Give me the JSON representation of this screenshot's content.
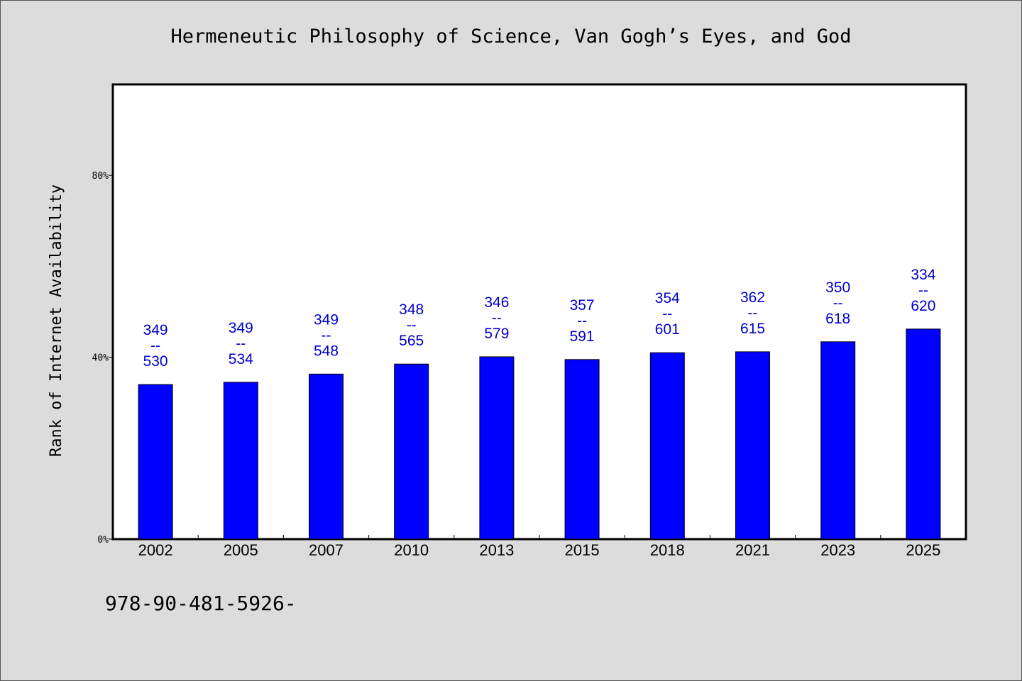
{
  "chart_data": {
    "type": "bar",
    "title": "Hermeneutic Philosophy of Science, Van Gogh’s Eyes, and God",
    "xlabel": "",
    "ylabel": "Rank of Internet Availability",
    "ylim": [
      0,
      100
    ],
    "yticks": [
      0,
      40,
      80
    ],
    "ytick_labels": [
      "0%",
      "40%",
      "80%"
    ],
    "categories": [
      "2002",
      "2005",
      "2007",
      "2010",
      "2013",
      "2015",
      "2018",
      "2021",
      "2023",
      "2025"
    ],
    "values": [
      34,
      34.5,
      36.3,
      38.5,
      40.1,
      39.5,
      41,
      41.2,
      43.4,
      46.2
    ],
    "bar_labels": [
      [
        "349",
        "--",
        "530"
      ],
      [
        "349",
        "--",
        "534"
      ],
      [
        "349",
        "--",
        "548"
      ],
      [
        "348",
        "--",
        "565"
      ],
      [
        "346",
        "--",
        "579"
      ],
      [
        "357",
        "--",
        "591"
      ],
      [
        "354",
        "--",
        "601"
      ],
      [
        "362",
        "--",
        "615"
      ],
      [
        "350",
        "--",
        "618"
      ],
      [
        "334",
        "--",
        "620"
      ]
    ],
    "bar_color": "#0000ff",
    "label_color": "#0000cc",
    "grid": false,
    "legend": "none"
  },
  "footer": {
    "text": "978-90-481-5926-"
  }
}
